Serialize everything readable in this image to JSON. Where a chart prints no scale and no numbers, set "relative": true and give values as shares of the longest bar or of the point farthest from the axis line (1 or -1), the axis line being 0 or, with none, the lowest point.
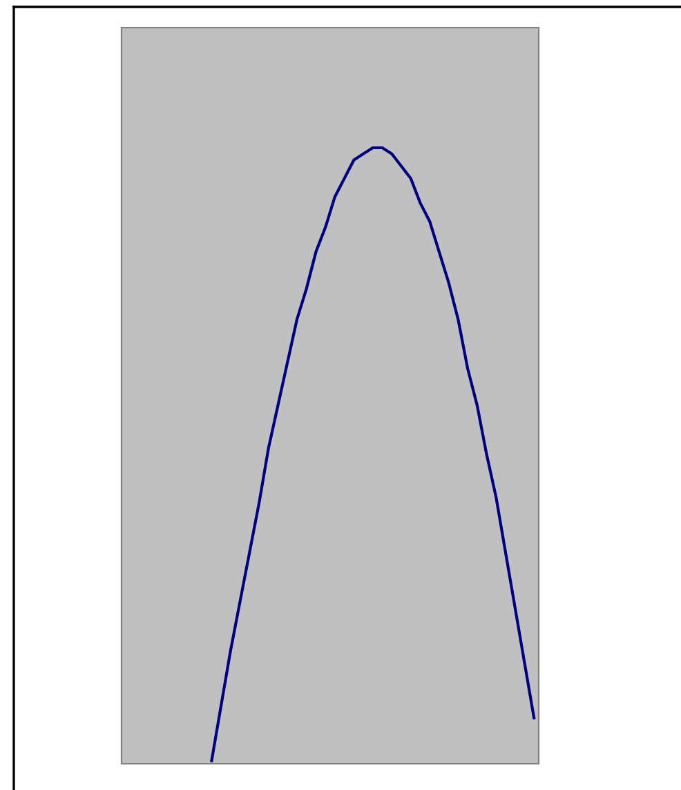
{
  "chart_data": {
    "type": "line",
    "relative": true,
    "grid": false,
    "legend": false,
    "marker": "none",
    "line_style": "solid",
    "categories": [
      null,
      null,
      null,
      null,
      null,
      null,
      null,
      null,
      null,
      null,
      null,
      null,
      null,
      null,
      null,
      null,
      null,
      null,
      null,
      null,
      null,
      null,
      null,
      null,
      null,
      null,
      null,
      null,
      null,
      null,
      null,
      null,
      null,
      null,
      null,
      null,
      null,
      null,
      null,
      null,
      null,
      null,
      null,
      null
    ],
    "series": [
      {
        "color": "#000080",
        "values": [
          null,
          null,
          null,
          null,
          null,
          null,
          null,
          null,
          null,
          0,
          0.09,
          0.18,
          0.26,
          0.34,
          0.42,
          0.51,
          0.58,
          0.65,
          0.72,
          0.77,
          0.83,
          0.87,
          0.92,
          0.95,
          0.98,
          0.99,
          1,
          1,
          0.99,
          0.97,
          0.95,
          0.91,
          0.88,
          0.83,
          0.78,
          0.72,
          0.64,
          0.58,
          0.5,
          0.43,
          0.34,
          0.25,
          0.16,
          0.07
        ]
      }
    ]
  }
}
